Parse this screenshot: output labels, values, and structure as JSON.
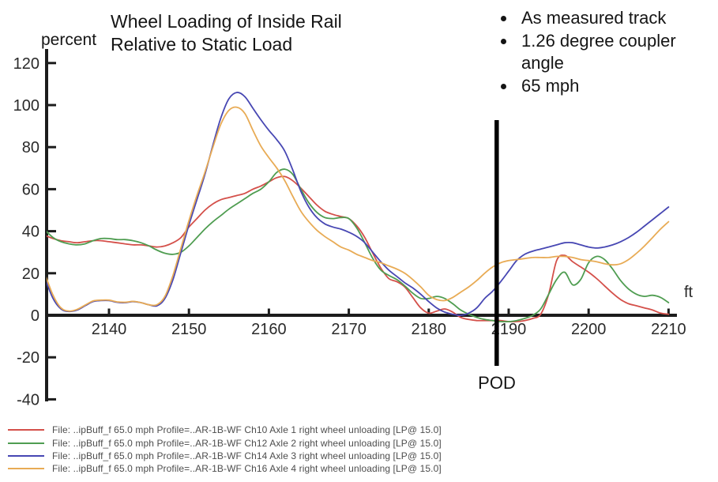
{
  "header": {
    "title_lines": [
      "Wheel Loading of Inside Rail",
      "Relative to Static Load"
    ],
    "bullets": [
      "As measured track",
      "1.26 degree coupler angle",
      "65 mph"
    ]
  },
  "chart_data": {
    "type": "line",
    "title": "Wheel Loading of Inside Rail Relative to Static Load",
    "ylabel": "percent",
    "xlabel": "ft",
    "ylim": [
      -40,
      120
    ],
    "xlim": [
      2132,
      2211
    ],
    "y_ticks": [
      120,
      100,
      80,
      60,
      40,
      20,
      0,
      -20,
      -40
    ],
    "x_ticks": [
      2140,
      2150,
      2160,
      2170,
      2180,
      2190,
      2200,
      2210
    ],
    "grid": false,
    "legend_position": "bottom-left",
    "annotation": {
      "label": "POD",
      "x": 2188.5
    },
    "x": [
      2132,
      2133,
      2134,
      2135,
      2136,
      2137,
      2138,
      2139,
      2140,
      2141,
      2142,
      2143,
      2144,
      2145,
      2146,
      2147,
      2148,
      2149,
      2150,
      2151,
      2152,
      2153,
      2154,
      2155,
      2156,
      2157,
      2158,
      2159,
      2160,
      2161,
      2162,
      2163,
      2164,
      2165,
      2166,
      2167,
      2168,
      2169,
      2170,
      2171,
      2172,
      2173,
      2174,
      2175,
      2176,
      2177,
      2178,
      2179,
      2180,
      2181,
      2182,
      2183,
      2184,
      2185,
      2186,
      2187,
      2188,
      2189,
      2190,
      2191,
      2192,
      2193,
      2194,
      2195,
      2196,
      2197,
      2198,
      2199,
      2200,
      2201,
      2202,
      2203,
      2204,
      2205,
      2206,
      2207,
      2208,
      2209,
      2210
    ],
    "series": [
      {
        "id": "ch10-axle1",
        "name": "Ch10 Axle 1 right wheel unloading",
        "color": "#d4504a",
        "values": [
          38,
          36.5,
          35.5,
          35,
          34.5,
          35,
          35.5,
          35.5,
          35,
          34.5,
          34,
          33.5,
          33.5,
          33,
          32.5,
          33,
          34.5,
          37,
          42,
          46,
          50,
          53,
          55,
          56,
          57,
          58,
          60,
          61.5,
          63.5,
          65.5,
          66,
          64,
          60.5,
          56.5,
          52.5,
          49.5,
          48,
          47,
          46,
          42.5,
          37,
          29.5,
          22.5,
          17.5,
          16,
          13.5,
          8.5,
          3.5,
          1,
          2,
          3,
          1.5,
          -1,
          -2,
          -2.5,
          -2.5,
          -2.5,
          -2.5,
          -3,
          -3,
          -2.5,
          -1.5,
          0.5,
          10,
          26,
          28.5,
          25.5,
          23,
          20.5,
          17.5,
          14,
          10.5,
          7.5,
          5.5,
          4.5,
          3.5,
          2.5,
          1,
          0.5
        ]
      },
      {
        "id": "ch12-axle2",
        "name": "Ch12 Axle 2 right wheel unloading",
        "color": "#4f9d51",
        "values": [
          40.5,
          37,
          35,
          34,
          33.5,
          34,
          35.5,
          36.5,
          36.5,
          36,
          36,
          35.5,
          34.5,
          33,
          31,
          29.5,
          29,
          30,
          33,
          37,
          41,
          44.5,
          47.5,
          50.5,
          53,
          55.5,
          58,
          60,
          63.5,
          68,
          69.5,
          67,
          60,
          53.5,
          49,
          46.5,
          46,
          46.5,
          46,
          41.5,
          34.5,
          27,
          21.5,
          19,
          17,
          14,
          10.5,
          8,
          8,
          9,
          8,
          5.5,
          2.5,
          0.5,
          -1,
          -2,
          -2.5,
          -3,
          -3,
          -2.5,
          -1.5,
          0,
          3,
          10,
          17,
          20.5,
          14.5,
          17,
          25,
          28,
          26.5,
          22,
          16.5,
          12.5,
          10,
          9,
          9.5,
          8.5,
          6
        ]
      },
      {
        "id": "ch14-axle3",
        "name": "Ch14 Axle 3 right wheel unloading",
        "color": "#4747b3",
        "values": [
          17.5,
          8,
          3,
          1.8,
          2.5,
          4.5,
          6.5,
          7,
          7,
          6.2,
          6,
          6.5,
          6,
          5,
          4.5,
          8,
          17,
          30,
          43,
          55,
          67,
          81,
          94,
          103,
          106,
          104,
          98.5,
          93,
          88,
          83.5,
          78,
          69,
          59,
          51.5,
          46.5,
          43.5,
          42,
          41,
          39.5,
          37.5,
          34.5,
          30,
          25.5,
          21.5,
          18.5,
          15.5,
          13,
          10,
          6.5,
          3.5,
          1.5,
          0.5,
          0,
          1,
          3.5,
          8,
          11.5,
          16,
          21,
          26,
          29,
          30.5,
          31.5,
          32.5,
          33.5,
          34.5,
          34.5,
          33.5,
          32.5,
          32,
          32.5,
          33.5,
          35,
          37,
          39.5,
          42.5,
          45.5,
          48.5,
          51.5
        ]
      },
      {
        "id": "ch16-axle4",
        "name": "Ch16 Axle 4 right wheel unloading",
        "color": "#e8ab55",
        "values": [
          19.5,
          9.5,
          3.5,
          2,
          2.8,
          4.8,
          6.8,
          7.2,
          7.2,
          6.4,
          6.2,
          6.6,
          6,
          5,
          5,
          9,
          19,
          32,
          45,
          57,
          68,
          80,
          91,
          97.5,
          99,
          96,
          88,
          80.5,
          75,
          70,
          64,
          56.5,
          49.5,
          44.5,
          40.5,
          37.5,
          35,
          32.5,
          31,
          29,
          27.5,
          26,
          25,
          23.5,
          22,
          20,
          17,
          13.5,
          9.5,
          7.5,
          7,
          8.5,
          11,
          13.5,
          16.5,
          20,
          23,
          25,
          26,
          26.5,
          27,
          27.5,
          27.5,
          27.5,
          28,
          28,
          27.5,
          26.5,
          26,
          25.5,
          24.5,
          24,
          24.5,
          26.5,
          29.5,
          33,
          37,
          41,
          44.5
        ]
      }
    ]
  },
  "legend": {
    "items": [
      {
        "label": "File: ..ipBuff_f 65.0 mph Profile=..AR-1B-WF Ch10 Axle 1 right wheel unloading  [LP@ 15.0]",
        "color": "#d4504a"
      },
      {
        "label": "File: ..ipBuff_f 65.0 mph Profile=..AR-1B-WF Ch12 Axle 2 right wheel unloading  [LP@ 15.0]",
        "color": "#4f9d51"
      },
      {
        "label": "File: ..ipBuff_f 65.0 mph Profile=..AR-1B-WF Ch14 Axle 3 right wheel unloading  [LP@ 15.0]",
        "color": "#4747b3"
      },
      {
        "label": "File: ..ipBuff_f 65.0 mph Profile=..AR-1B-WF Ch16 Axle 4 right wheel unloading  [LP@ 15.0]",
        "color": "#e8ab55"
      }
    ]
  }
}
